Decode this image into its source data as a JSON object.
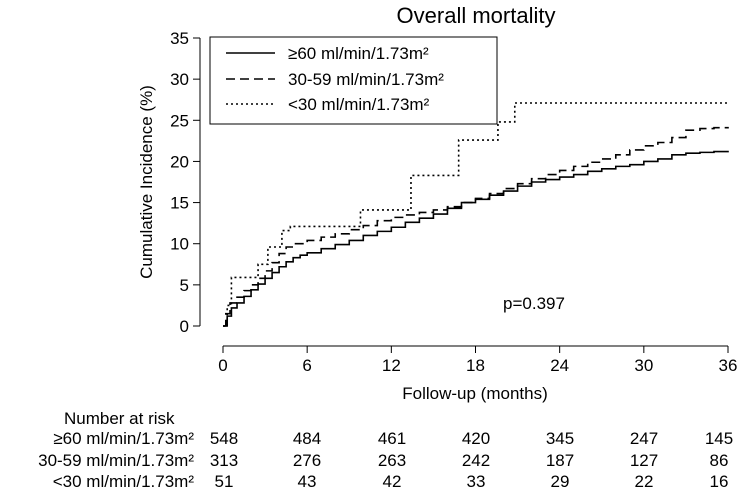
{
  "chart_data": {
    "type": "line",
    "title": "Overall mortality",
    "xlabel": "Follow-up (months)",
    "ylabel": "Cumulative Incidence (%)",
    "xlim": [
      0,
      36
    ],
    "ylim": [
      0,
      35
    ],
    "xticks": [
      0,
      6,
      12,
      18,
      24,
      30,
      36
    ],
    "yticks": [
      0,
      5,
      10,
      15,
      20,
      25,
      30,
      35
    ],
    "legend_position": "top-left",
    "annotation": "p=0.397",
    "series": [
      {
        "name": "≥60 ml/min/1.73m²",
        "style": "solid",
        "x": [
          0,
          0.3,
          0.6,
          1,
          1.5,
          2,
          2.5,
          3,
          3.5,
          4,
          4.5,
          5,
          5.5,
          6,
          7,
          8,
          9,
          10,
          11,
          12,
          13,
          14,
          15,
          16,
          17,
          18,
          19,
          20,
          21,
          22,
          23,
          24,
          25,
          26,
          27,
          28,
          29,
          30,
          31,
          32,
          33,
          34,
          35,
          36
        ],
        "y": [
          0,
          1.2,
          2.2,
          2.8,
          3.6,
          4.4,
          5.1,
          5.8,
          6.5,
          7.2,
          7.8,
          8.3,
          8.6,
          8.9,
          9.4,
          9.9,
          10.4,
          11,
          11.5,
          12,
          12.6,
          13.1,
          13.6,
          14.3,
          15,
          15.4,
          15.9,
          16.4,
          17,
          17.5,
          17.8,
          18.1,
          18.4,
          18.8,
          19.1,
          19.4,
          19.6,
          20,
          20.3,
          20.8,
          21,
          21.1,
          21.2,
          21.3
        ]
      },
      {
        "name": "30-59 ml/min/1.73m²",
        "style": "dashed",
        "x": [
          0,
          0.2,
          0.5,
          1,
          1.5,
          2,
          2.5,
          3,
          3.5,
          4,
          4.5,
          5,
          6,
          7,
          8,
          9,
          10,
          11,
          12,
          13,
          14,
          15,
          16,
          17,
          18,
          19,
          20,
          21,
          22,
          23,
          24,
          25,
          26,
          27,
          28,
          29,
          30,
          31,
          32,
          33,
          34,
          35,
          36
        ],
        "y": [
          0,
          1.5,
          2.8,
          3.5,
          4.3,
          5,
          5.8,
          6.7,
          7.7,
          8.8,
          9.6,
          10,
          10.4,
          10.8,
          11.2,
          11.7,
          12.2,
          12.8,
          13.2,
          13.5,
          13.8,
          14.1,
          14.5,
          15,
          15.5,
          16.1,
          16.7,
          17.3,
          17.9,
          18.4,
          18.9,
          19.4,
          19.9,
          20.3,
          20.8,
          21.4,
          21.9,
          22.3,
          22.9,
          23.8,
          24,
          24.1,
          24.2
        ]
      },
      {
        "name": "<30 ml/min/1.73m²",
        "style": "dotted",
        "x": [
          0,
          0.3,
          0.6,
          1.5,
          2.5,
          3.2,
          4.2,
          4.8,
          8.8,
          9.8,
          11.8,
          13.4,
          16.8,
          19.6,
          20.8,
          36
        ],
        "y": [
          0,
          2.5,
          5.9,
          5.9,
          7.5,
          9.6,
          11.6,
          12.1,
          12.1,
          14.1,
          14.1,
          18.3,
          22.6,
          24.8,
          27.1,
          27.1
        ]
      }
    ]
  },
  "risk_table": {
    "header": "Number at risk",
    "rows": [
      {
        "label": "≥60 ml/min/1.73m²",
        "values": [
          "548",
          "484",
          "461",
          "420",
          "345",
          "247",
          "145"
        ]
      },
      {
        "label": "30-59 ml/min/1.73m²",
        "values": [
          "313",
          "276",
          "263",
          "242",
          "187",
          "127",
          "86"
        ]
      },
      {
        "label": "<30 ml/min/1.73m²",
        "values": [
          "51",
          "43",
          "42",
          "33",
          "29",
          "22",
          "16"
        ]
      }
    ]
  }
}
